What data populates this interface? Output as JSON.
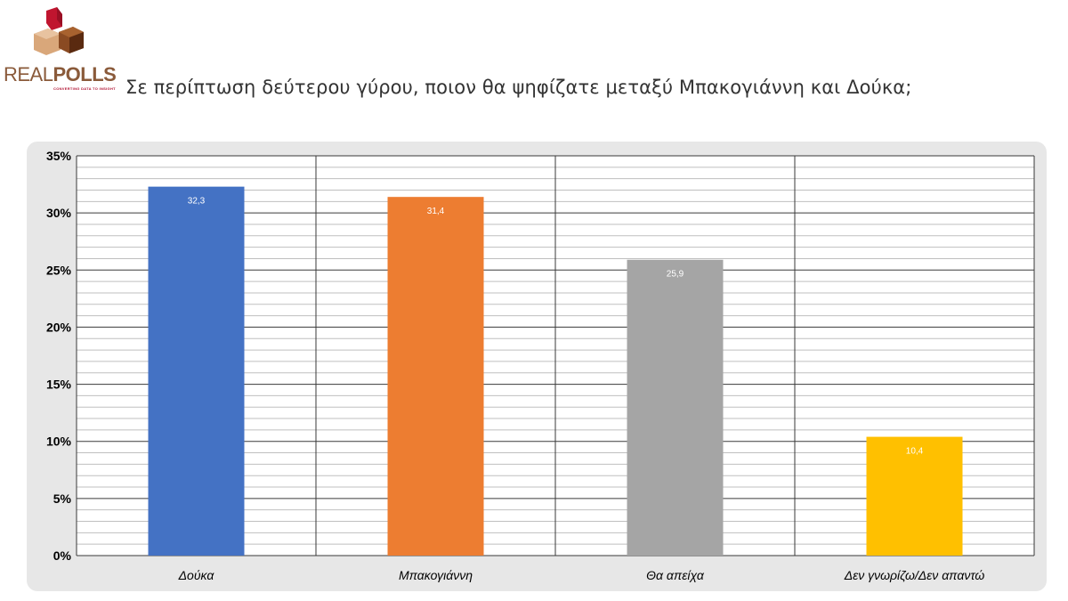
{
  "logo": {
    "word_light": "REAL",
    "word_bold": "POLLS",
    "tagline": "CONVERTING DATA TO INSIGHT",
    "colors": {
      "red": "#c0152f",
      "tan": "#d9a77a",
      "brown": "#8a4a22",
      "dark": "#5a2a10"
    }
  },
  "title": "Σε περίπτωση δεύτερου γύρου, ποιον θα ψηφίζατε μεταξύ Μπακογιάννη και Δούκα;",
  "chart_data": {
    "type": "bar",
    "categories": [
      "Δούκα",
      "Μπακογιάννη",
      "Θα απείχα",
      "Δεν γνωρίζω/Δεν απαντώ"
    ],
    "values": [
      32.3,
      31.4,
      25.9,
      10.4
    ],
    "value_labels": [
      "32,3",
      "31,4",
      "25,9",
      "10,4"
    ],
    "colors": [
      "#4472c4",
      "#ed7d31",
      "#a5a5a5",
      "#ffc000"
    ],
    "yticks": [
      "0%",
      "5%",
      "10%",
      "15%",
      "20%",
      "25%",
      "30%",
      "35%"
    ],
    "ylim": [
      0,
      35
    ],
    "grid": true,
    "title": "",
    "xlabel": "",
    "ylabel": ""
  }
}
